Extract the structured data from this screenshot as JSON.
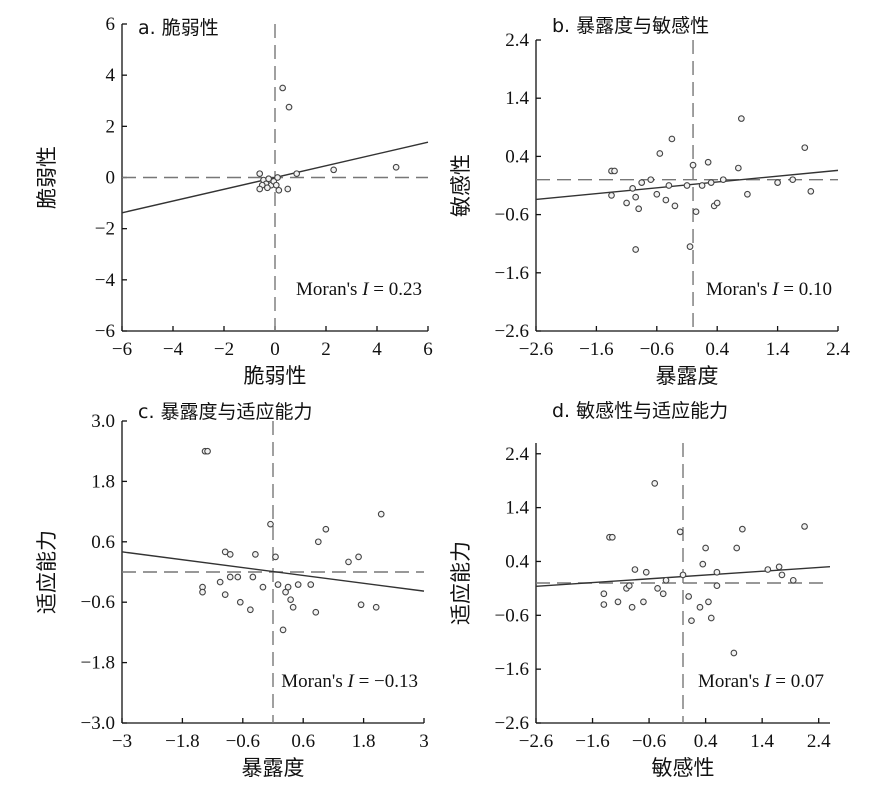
{
  "chart_data": [
    {
      "type": "scatter",
      "title": "a. 脆弱性",
      "xlabel": "脆弱性",
      "ylabel": "脆弱性",
      "xlim": [
        -6,
        6
      ],
      "ylim": [
        -6,
        6
      ],
      "xticks": [
        -6,
        -4,
        -2,
        0,
        2,
        4,
        6
      ],
      "yticks": [
        -6,
        -4,
        -2,
        0,
        2,
        4,
        6
      ],
      "xtick_labels": [
        "−6",
        "−4",
        "−2",
        "0",
        "2",
        "4",
        "6"
      ],
      "ytick_labels": [
        "−6",
        "−4",
        "−2",
        "0",
        "2",
        "4",
        "6"
      ],
      "moran_prefix": "Moran's ",
      "moran_I": "I",
      "moran_suffix": " = 0.23",
      "regression": {
        "slope": 0.23,
        "intercept": 0
      },
      "points": [
        [
          0.3,
          3.5
        ],
        [
          0.55,
          2.75
        ],
        [
          0.85,
          0.15
        ],
        [
          2.3,
          0.3
        ],
        [
          4.75,
          0.4
        ],
        [
          -0.6,
          0.15
        ],
        [
          -0.45,
          -0.1
        ],
        [
          -0.35,
          -0.25
        ],
        [
          -0.25,
          -0.05
        ],
        [
          -0.15,
          -0.3
        ],
        [
          -0.5,
          -0.3
        ],
        [
          -0.6,
          -0.45
        ],
        [
          -0.05,
          -0.15
        ],
        [
          0.05,
          -0.3
        ],
        [
          0.15,
          -0.5
        ],
        [
          0.5,
          -0.45
        ],
        [
          -0.3,
          -0.4
        ],
        [
          0.1,
          0.0
        ]
      ]
    },
    {
      "type": "scatter",
      "title": "b. 暴露度与敏感性",
      "xlabel": "暴露度",
      "ylabel": "敏感性",
      "xlim": [
        -2.6,
        2.4
      ],
      "ylim": [
        -2.6,
        2.4
      ],
      "xticks": [
        -2.6,
        -1.6,
        -0.6,
        0.4,
        1.4,
        2.4
      ],
      "yticks": [
        -2.6,
        -1.6,
        -0.6,
        0.4,
        1.4,
        2.4
      ],
      "xtick_labels": [
        "−2.6",
        "−1.6",
        "−0.6",
        "0.4",
        "1.4",
        "2.4"
      ],
      "ytick_labels": [
        "−2.6",
        "−1.6",
        "−0.6",
        "0.4",
        "1.4",
        "2.4"
      ],
      "moran_prefix": "Moran's ",
      "moran_I": "I",
      "moran_suffix": " = 0.10",
      "regression": {
        "slope": 0.1,
        "intercept": -0.08
      },
      "points": [
        [
          -1.35,
          0.15
        ],
        [
          -1.3,
          0.15
        ],
        [
          -1.35,
          -0.27
        ],
        [
          -1.1,
          -0.4
        ],
        [
          -1.0,
          -0.15
        ],
        [
          -0.95,
          -0.3
        ],
        [
          -0.9,
          -0.5
        ],
        [
          -0.85,
          -0.05
        ],
        [
          -0.7,
          0.0
        ],
        [
          -0.55,
          0.45
        ],
        [
          -0.6,
          -0.25
        ],
        [
          -0.45,
          -0.35
        ],
        [
          -0.4,
          -0.1
        ],
        [
          -0.35,
          0.7
        ],
        [
          -0.3,
          -0.45
        ],
        [
          -0.05,
          -1.15
        ],
        [
          -0.1,
          -0.1
        ],
        [
          0.0,
          0.25
        ],
        [
          0.05,
          -0.55
        ],
        [
          0.15,
          -0.1
        ],
        [
          0.25,
          0.3
        ],
        [
          0.3,
          -0.05
        ],
        [
          0.35,
          -0.45
        ],
        [
          0.4,
          -0.4
        ],
        [
          0.5,
          0.0
        ],
        [
          0.8,
          1.05
        ],
        [
          0.9,
          -0.25
        ],
        [
          0.75,
          0.2
        ],
        [
          1.4,
          -0.05
        ],
        [
          1.65,
          0.0
        ],
        [
          1.85,
          0.55
        ],
        [
          1.95,
          -0.2
        ],
        [
          -0.95,
          -1.2
        ]
      ]
    },
    {
      "type": "scatter",
      "title": "c. 暴露度与适应能力",
      "xlabel": "暴露度",
      "ylabel": "适应能力",
      "xlim": [
        -3,
        3
      ],
      "ylim": [
        -3.0,
        3.0
      ],
      "xticks": [
        -3,
        -1.8,
        -0.6,
        0.6,
        1.8,
        3
      ],
      "yticks": [
        -3.0,
        -1.8,
        -0.6,
        0.6,
        1.8,
        3.0
      ],
      "xtick_labels": [
        "−3",
        "−1.8",
        "−0.6",
        "0.6",
        "1.8",
        "3"
      ],
      "ytick_labels": [
        "−3.0",
        "−1.8",
        "−0.6",
        "0.6",
        "1.8",
        "3.0"
      ],
      "moran_prefix": "Moran's ",
      "moran_I": "I",
      "moran_suffix": " = −0.13",
      "regression": {
        "slope": -0.13,
        "intercept": 0.01
      },
      "points": [
        [
          -1.35,
          2.4
        ],
        [
          -1.3,
          2.4
        ],
        [
          -1.4,
          -0.3
        ],
        [
          -1.4,
          -0.4
        ],
        [
          -1.05,
          -0.2
        ],
        [
          -0.95,
          0.4
        ],
        [
          -0.85,
          0.35
        ],
        [
          -0.85,
          -0.1
        ],
        [
          -0.95,
          -0.45
        ],
        [
          -0.7,
          -0.1
        ],
        [
          -0.65,
          -0.6
        ],
        [
          -0.45,
          -0.75
        ],
        [
          -0.35,
          0.35
        ],
        [
          -0.4,
          -0.1
        ],
        [
          -0.2,
          -0.3
        ],
        [
          -0.05,
          0.95
        ],
        [
          0.05,
          0.3
        ],
        [
          0.1,
          -0.25
        ],
        [
          0.25,
          -0.4
        ],
        [
          0.3,
          -0.3
        ],
        [
          0.35,
          -0.55
        ],
        [
          0.4,
          -0.7
        ],
        [
          0.2,
          -1.15
        ],
        [
          0.5,
          -0.25
        ],
        [
          0.85,
          -0.8
        ],
        [
          0.9,
          0.6
        ],
        [
          1.05,
          0.85
        ],
        [
          1.5,
          0.2
        ],
        [
          1.7,
          0.3
        ],
        [
          1.75,
          -0.65
        ],
        [
          2.05,
          -0.7
        ],
        [
          2.15,
          1.15
        ],
        [
          0.75,
          -0.25
        ]
      ]
    },
    {
      "type": "scatter",
      "title": "d. 敏感性与适应能力",
      "xlabel": "敏感性",
      "ylabel": "适应能力",
      "xlim": [
        -2.6,
        2.6
      ],
      "ylim": [
        -2.6,
        2.6
      ],
      "xticks": [
        -2.6,
        -1.6,
        -0.6,
        0.4,
        1.4,
        2.4
      ],
      "yticks": [
        -2.6,
        -1.6,
        -0.6,
        0.4,
        1.4,
        2.4
      ],
      "xtick_labels": [
        "−2.6",
        "−1.6",
        "−0.6",
        "0.4",
        "1.4",
        "2.4"
      ],
      "ytick_labels": [
        "−2.6",
        "−1.6",
        "−0.6",
        "0.4",
        "1.4",
        "2.4"
      ],
      "moran_prefix": "Moran's ",
      "moran_I": "I",
      "moran_suffix": " = 0.07",
      "regression": {
        "slope": 0.07,
        "intercept": 0.12
      },
      "points": [
        [
          -1.3,
          0.85
        ],
        [
          -1.25,
          0.85
        ],
        [
          -1.4,
          -0.2
        ],
        [
          -1.4,
          -0.4
        ],
        [
          -1.15,
          -0.35
        ],
        [
          -1.0,
          -0.1
        ],
        [
          -0.95,
          -0.05
        ],
        [
          -0.85,
          0.25
        ],
        [
          -0.9,
          -0.45
        ],
        [
          -0.7,
          -0.35
        ],
        [
          -0.65,
          0.2
        ],
        [
          -0.5,
          1.85
        ],
        [
          -0.45,
          -0.1
        ],
        [
          -0.35,
          -0.2
        ],
        [
          -0.3,
          0.05
        ],
        [
          -0.05,
          0.95
        ],
        [
          0.0,
          0.15
        ],
        [
          0.1,
          -0.25
        ],
        [
          0.15,
          -0.7
        ],
        [
          0.3,
          -0.45
        ],
        [
          0.35,
          0.35
        ],
        [
          0.4,
          0.65
        ],
        [
          0.45,
          -0.35
        ],
        [
          0.6,
          0.2
        ],
        [
          0.6,
          -0.05
        ],
        [
          0.5,
          -0.65
        ],
        [
          0.95,
          0.65
        ],
        [
          1.05,
          1.0
        ],
        [
          1.5,
          0.25
        ],
        [
          1.7,
          0.3
        ],
        [
          1.95,
          0.05
        ],
        [
          2.15,
          1.05
        ],
        [
          0.9,
          -1.3
        ],
        [
          1.75,
          0.15
        ]
      ]
    }
  ]
}
